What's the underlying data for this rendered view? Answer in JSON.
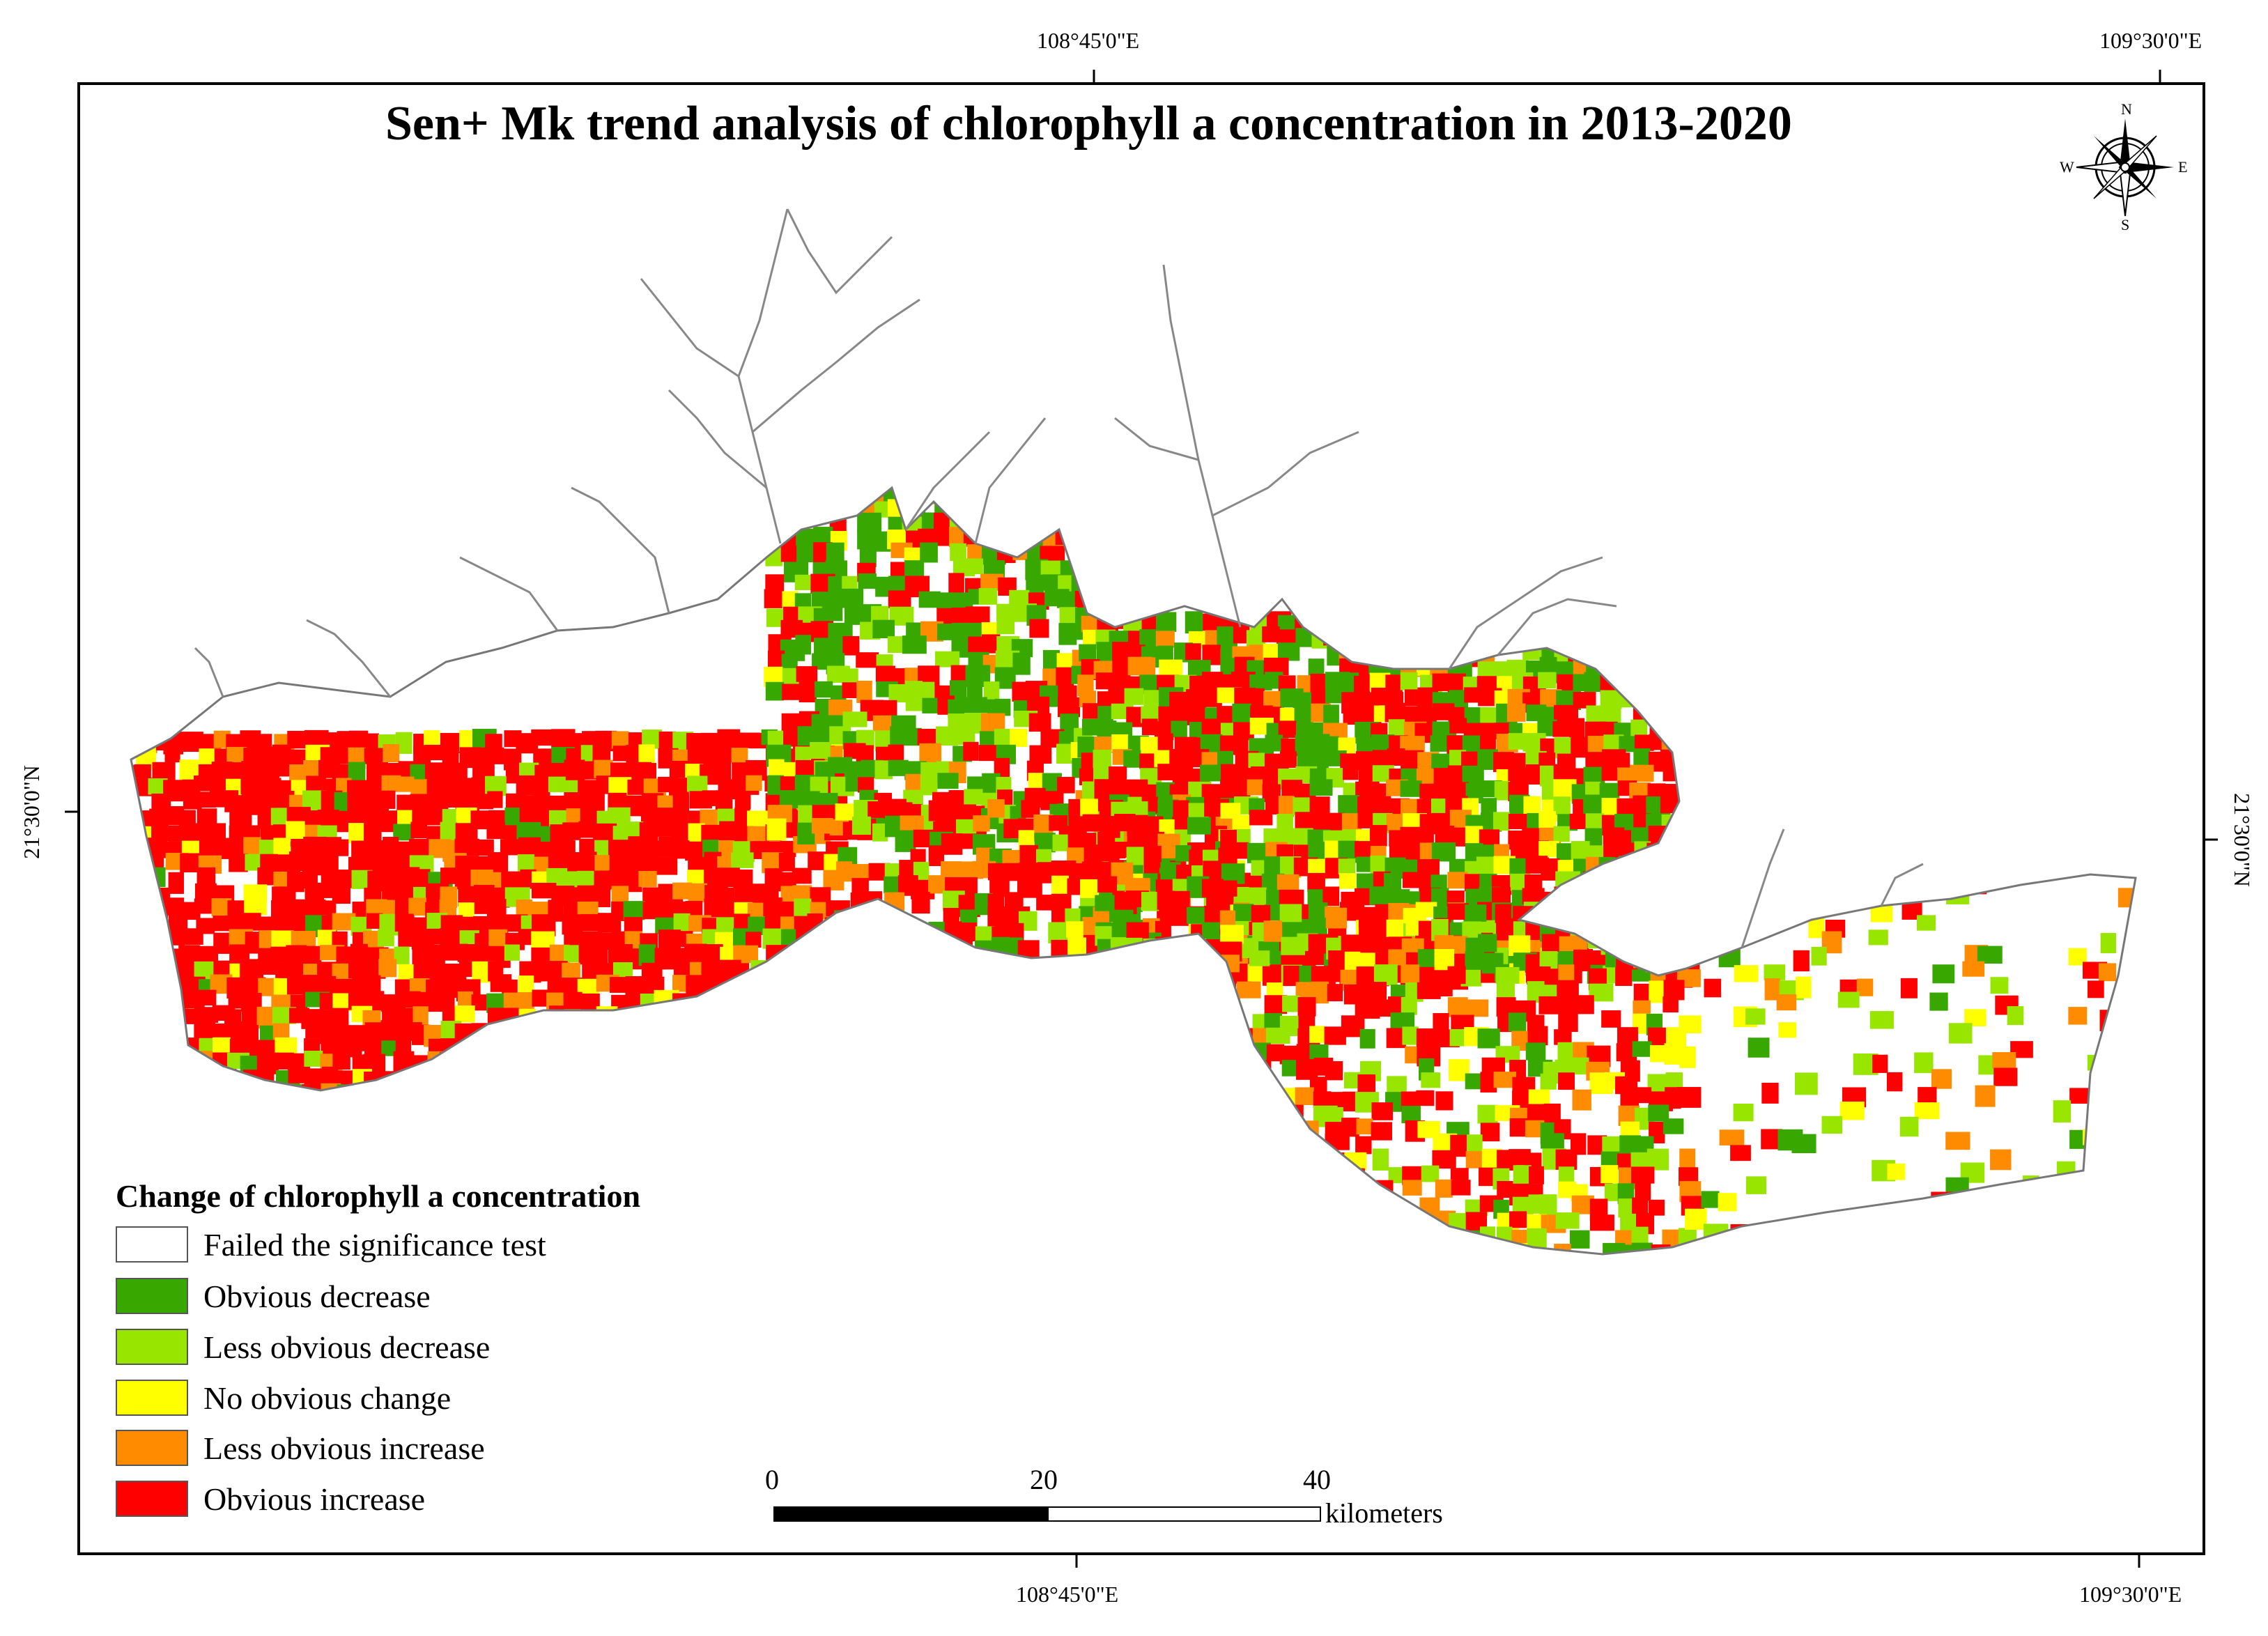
{
  "map": {
    "title": "Sen+ Mk trend analysis of chlorophyll a concentration in 2013-2020",
    "graticule": {
      "top_labels": [
        "108°45'0\"E",
        "109°30'0\"E"
      ],
      "bottom_labels": [
        "108°45'0\"E",
        "109°30'0\"E"
      ],
      "left_label": "21°30'0\"N",
      "right_label": "21°30'0\"N"
    },
    "compass": {
      "n": "N",
      "s": "S",
      "e": "E",
      "w": "W"
    },
    "legend": {
      "title": "Change of chlorophyll a concentration",
      "items": [
        {
          "label": "Failed the significance test",
          "color": "#ffffff"
        },
        {
          "label": "Obvious decrease",
          "color": "#38a800"
        },
        {
          "label": "Less obvious decrease",
          "color": "#98e600"
        },
        {
          "label": "No obvious change",
          "color": "#ffff00"
        },
        {
          "label": "Less obvious increase",
          "color": "#ff8c00"
        },
        {
          "label": "Obvious increase",
          "color": "#ff0000"
        }
      ]
    },
    "scale_bar": {
      "ticks": [
        "0",
        "20",
        "40"
      ],
      "unit": "kilometers"
    }
  }
}
